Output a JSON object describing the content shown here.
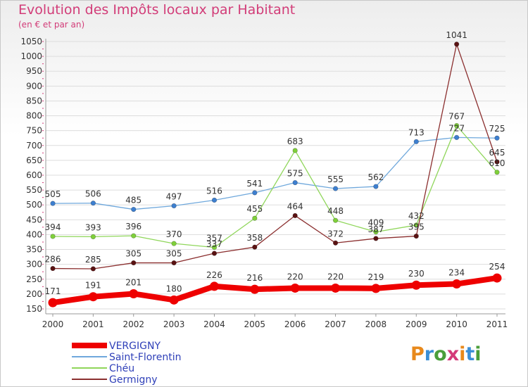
{
  "page": {
    "title": "Evolution des Impôts locaux par Habitant",
    "subtitle": "(en € et par an)",
    "logo_text": "Proxiti",
    "logo_colors": [
      "#e8891c",
      "#3a8ed6",
      "#4a9e3a",
      "#d43a7a",
      "#e8891c",
      "#3a8ed6",
      "#4a9e3a"
    ]
  },
  "chart_data": {
    "type": "line",
    "title": "Evolution des Impôts locaux par Habitant",
    "subtitle": "(en € et par an)",
    "xlabel": "",
    "ylabel": "",
    "x": [
      2000,
      2001,
      2002,
      2003,
      2004,
      2005,
      2006,
      2007,
      2008,
      2009,
      2010,
      2011
    ],
    "x_tick_labels": [
      "2000",
      "2001",
      "2002",
      "2003",
      "2004",
      "2005",
      "2006",
      "2007",
      "2008",
      "2009",
      "2010",
      "2011"
    ],
    "yticks": [
      150,
      200,
      250,
      300,
      350,
      400,
      450,
      500,
      550,
      600,
      650,
      700,
      750,
      800,
      850,
      900,
      950,
      1000,
      1050
    ],
    "ylim": [
      150,
      1050
    ],
    "grid": "horizontal",
    "legend_position": "bottom-left",
    "series": [
      {
        "name": "VERGIGNY",
        "color": "#ee0000",
        "thick": true,
        "values": [
          171,
          191,
          201,
          180,
          226,
          216,
          220,
          220,
          219,
          230,
          234,
          254
        ],
        "labels": [
          "171",
          "191",
          "201",
          "180",
          "226",
          "216",
          "220",
          "220",
          "219",
          "230",
          "234",
          "254"
        ]
      },
      {
        "name": "Saint-Florentin",
        "color": "#6fa8dc",
        "marker": "#3d7fd0",
        "values": [
          505,
          506,
          485,
          497,
          516,
          541,
          575,
          555,
          562,
          713,
          727,
          725
        ],
        "labels": [
          "505",
          "506",
          "485",
          "497",
          "516",
          "541",
          "575",
          "555",
          "562",
          "713",
          "727",
          "725"
        ]
      },
      {
        "name": "Chéu",
        "color": "#8fd65a",
        "marker": "#7fd03a",
        "values": [
          394,
          393,
          396,
          370,
          357,
          455,
          683,
          448,
          409,
          432,
          767,
          610
        ],
        "labels": [
          "394",
          "393",
          "396",
          "370",
          "357",
          "455",
          "683",
          "448",
          "409",
          "432",
          "767",
          "610"
        ]
      },
      {
        "name": "Germigny",
        "color": "#8b2f2f",
        "marker": "#5a1212",
        "values": [
          286,
          285,
          305,
          305,
          337,
          358,
          464,
          372,
          387,
          395,
          1041,
          645
        ],
        "labels": [
          "286",
          "285",
          "305",
          "305",
          "337",
          "358",
          "464",
          "372",
          "387",
          "395",
          "1041",
          "645"
        ]
      }
    ]
  }
}
